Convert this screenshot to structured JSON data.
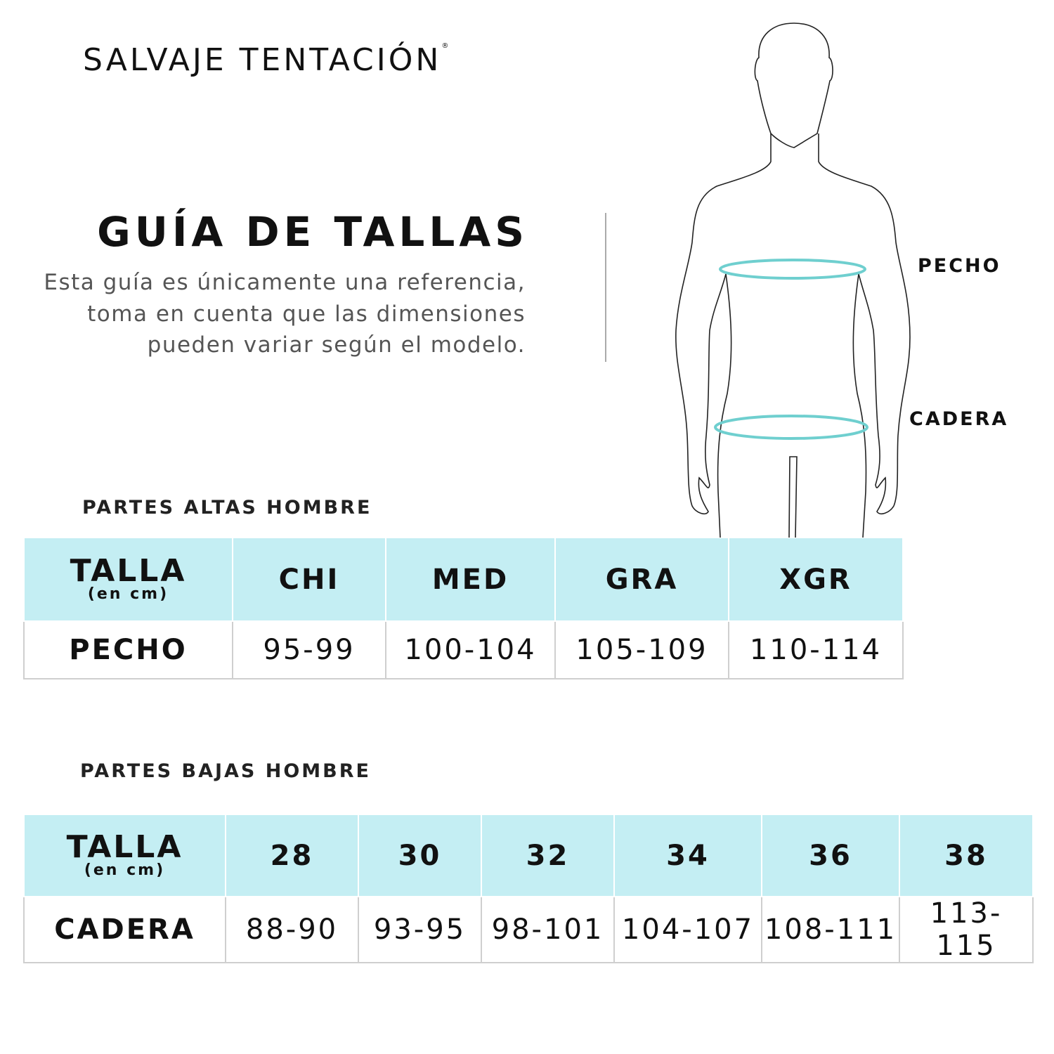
{
  "brand": {
    "name": "SALVAJE TENTACIÓN",
    "mark": "®"
  },
  "title": "GUÍA DE TALLAS",
  "description": "Esta guía es únicamente una referencia, toma en cuenta que las dimensiones pueden variar según el modelo.",
  "figure": {
    "labels": {
      "chest": "PECHO",
      "hip": "CADERA"
    },
    "colors": {
      "measure": "#6fcfcf",
      "outline": "#222222"
    }
  },
  "colors": {
    "header_bg": "#c4eef3"
  },
  "upper": {
    "section_title": "PARTES ALTAS HOMBRE",
    "header": {
      "label": "TALLA",
      "sub": "(en cm)",
      "sizes": [
        "CHI",
        "MED",
        "GRA",
        "XGR"
      ]
    },
    "row": {
      "label": "PECHO",
      "values": [
        "95-99",
        "100-104",
        "105-109",
        "110-114"
      ]
    }
  },
  "lower": {
    "section_title": "PARTES BAJAS HOMBRE",
    "header": {
      "label": "TALLA",
      "sub": "(en cm)",
      "sizes": [
        "28",
        "30",
        "32",
        "34",
        "36",
        "38"
      ]
    },
    "row": {
      "label": "CADERA",
      "values": [
        "88-90",
        "93-95",
        "98-101",
        "104-107",
        "108-111",
        "113-115"
      ]
    }
  }
}
